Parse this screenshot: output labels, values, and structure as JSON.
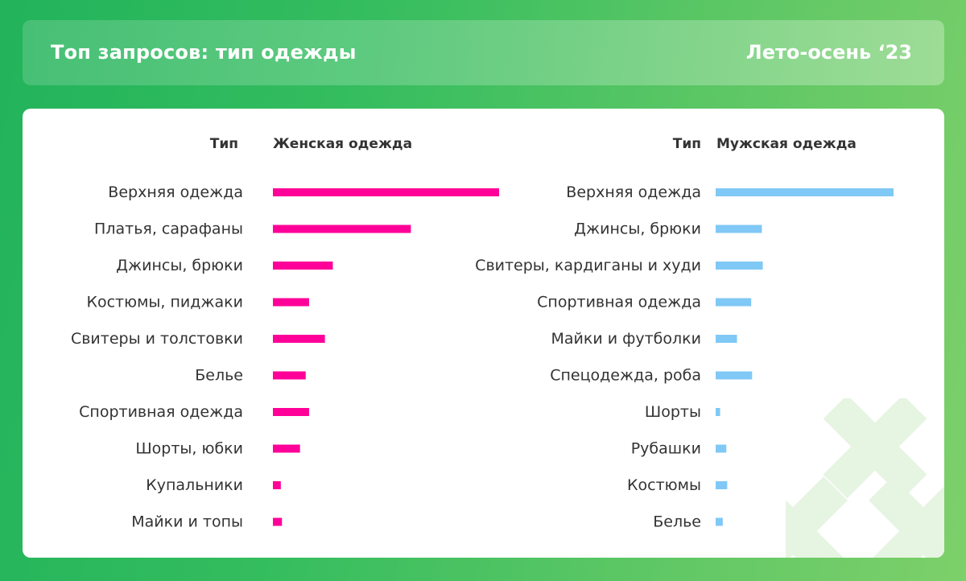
{
  "header": {
    "title": "Топ запросов: тип одежды",
    "period": "Лето-осень ‘23"
  },
  "chart_data": [
    {
      "type": "bar",
      "orientation": "horizontal",
      "category_header": "Тип",
      "series_header": "Женская одежда",
      "categories": [
        "Верхняя одежда",
        "Платья, сарафаны",
        "Джинсы, брюки",
        "Костюмы, пиджаки",
        "Свитеры и толстовки",
        "Белье",
        "Спортивная одежда",
        "Шорты, юбки",
        "Купальники",
        "Майки и топы"
      ],
      "values": [
        100,
        61,
        26.5,
        16,
        23,
        14.5,
        16,
        12,
        3.5,
        4
      ],
      "color": "#ff0099",
      "axes_visible": false,
      "grid": false
    },
    {
      "type": "bar",
      "orientation": "horizontal",
      "category_header": "Тип",
      "series_header": "Мужская одежда",
      "categories": [
        "Верхняя одежда",
        "Джинсы, брюки",
        "Свитеры, кардиганы и худи",
        "Спортивная одежда",
        "Майки и футболки",
        "Спецодежда, роба",
        "Шорты",
        "Рубашки",
        "Костюмы",
        "Белье"
      ],
      "values": [
        100,
        26,
        26.5,
        20,
        12,
        20.5,
        2.5,
        6,
        6.5,
        4
      ],
      "color": "#80c8f5",
      "axes_visible": false,
      "grid": false
    }
  ]
}
